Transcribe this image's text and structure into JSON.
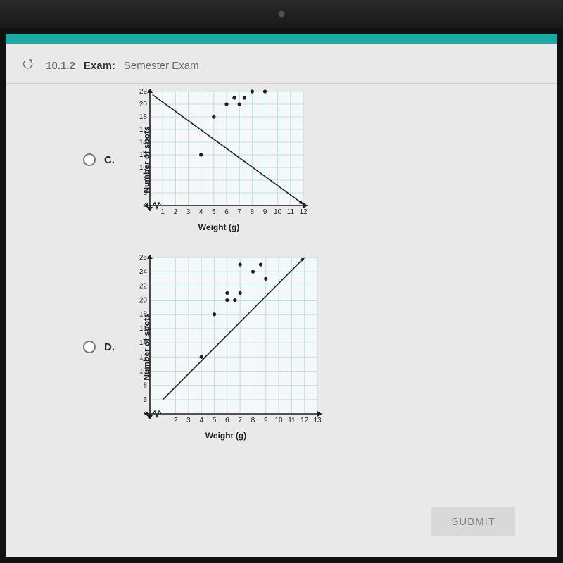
{
  "header": {
    "section": "10.1.2",
    "label_exam": "Exam:",
    "title": "Semester Exam"
  },
  "submit_label": "SUBMIT",
  "options": {
    "c": {
      "letter": "C."
    },
    "d": {
      "letter": "D."
    }
  },
  "chart_c": {
    "type": "scatter",
    "xlabel": "Weight (g)",
    "ylabel": "Number of spots",
    "xlim": [
      0,
      12
    ],
    "ylim": [
      4,
      22
    ],
    "xticks": [
      1,
      2,
      3,
      4,
      5,
      6,
      7,
      8,
      9,
      10,
      11,
      12
    ],
    "yticks": [
      4,
      6,
      8,
      10,
      12,
      14,
      16,
      18,
      20,
      22
    ],
    "grid_color": "#bfe0e0",
    "axis_color": "#1e1e1e",
    "point_color": "#1e1e1e",
    "bg": "#f4f8f8",
    "points": [
      [
        4,
        12
      ],
      [
        5,
        18
      ],
      [
        6,
        20
      ],
      [
        6.6,
        21
      ],
      [
        7,
        20
      ],
      [
        7.4,
        21
      ],
      [
        8,
        22
      ],
      [
        9,
        22
      ]
    ],
    "line_color": "#1e1e1e",
    "line": [
      [
        0.2,
        21.5
      ],
      [
        12,
        4.2
      ]
    ]
  },
  "chart_d": {
    "type": "scatter",
    "xlabel": "Weight (g)",
    "ylabel": "Number of spots",
    "xlim": [
      0,
      13
    ],
    "ylim": [
      4,
      26
    ],
    "xticks": [
      2,
      3,
      4,
      5,
      6,
      7,
      8,
      9,
      10,
      11,
      12,
      13
    ],
    "yticks": [
      4,
      6,
      8,
      10,
      12,
      14,
      16,
      18,
      20,
      22,
      24,
      26
    ],
    "grid_color": "#bfe0e0",
    "axis_color": "#1e1e1e",
    "point_color": "#1e1e1e",
    "bg": "#f4f8f8",
    "points": [
      [
        4,
        12
      ],
      [
        5,
        18
      ],
      [
        6,
        20
      ],
      [
        6,
        21
      ],
      [
        6.6,
        20
      ],
      [
        7,
        21
      ],
      [
        7,
        25
      ],
      [
        8,
        24
      ],
      [
        8.6,
        25
      ],
      [
        9,
        23
      ]
    ],
    "line_color": "#1e1e1e",
    "line": [
      [
        1,
        6
      ],
      [
        12,
        26
      ]
    ]
  }
}
